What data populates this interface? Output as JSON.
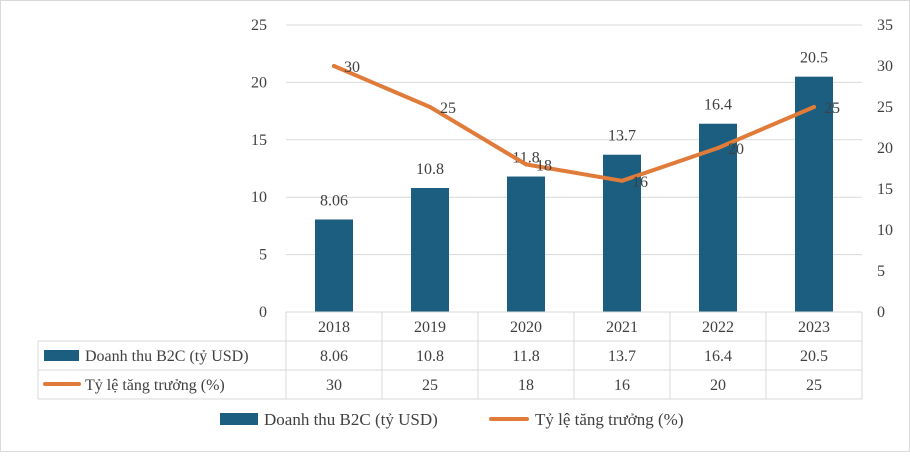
{
  "chart_data": {
    "type": "bar",
    "categories": [
      "2018",
      "2019",
      "2020",
      "2021",
      "2022",
      "2023"
    ],
    "series": [
      {
        "name": "Doanh thu B2C (tỷ USD)",
        "type": "bar",
        "axis": "left",
        "color": "#1b5e80",
        "values": [
          8.06,
          10.8,
          11.8,
          13.7,
          16.4,
          20.5
        ],
        "labels": [
          "8.06",
          "10.8",
          "11.8",
          "13.7",
          "16.4",
          "20.5"
        ]
      },
      {
        "name": "Tỷ lệ tăng trưởng (%)",
        "type": "line",
        "axis": "right",
        "color": "#e07b39",
        "values": [
          30,
          25,
          18,
          16,
          20,
          25
        ],
        "labels": [
          "30",
          "25",
          "18",
          "16",
          "20",
          "25"
        ]
      }
    ],
    "y_left": {
      "min": 0,
      "max": 25,
      "ticks": [
        "0",
        "5",
        "10",
        "15",
        "20",
        "25"
      ]
    },
    "y_right": {
      "min": 0,
      "max": 35,
      "ticks": [
        "0",
        "5",
        "10",
        "15",
        "20",
        "25",
        "30",
        "35"
      ]
    },
    "grid": true,
    "data_table": true,
    "legend": "bottom"
  }
}
